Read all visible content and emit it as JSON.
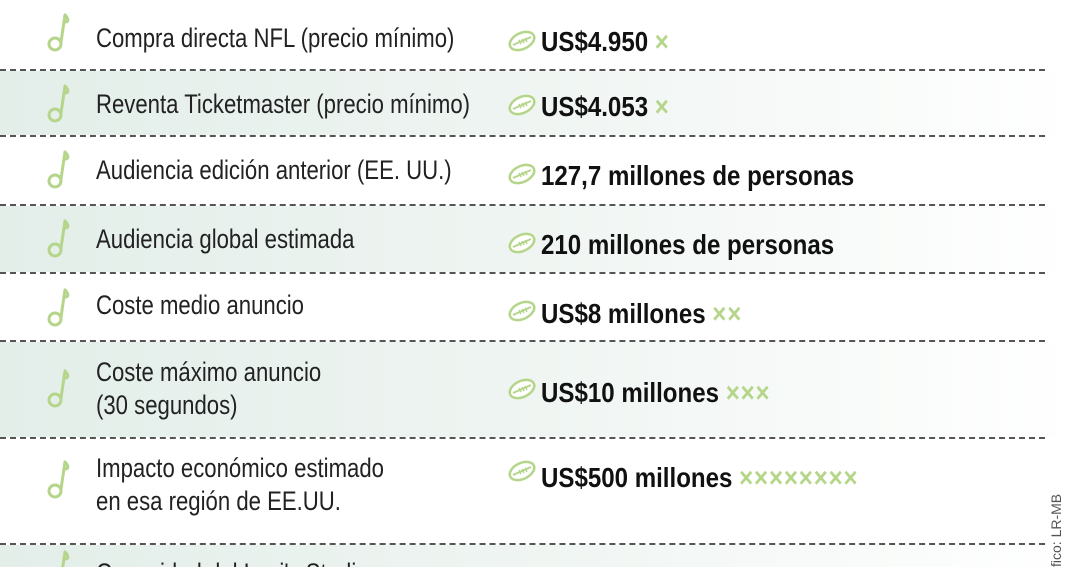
{
  "rows": [
    {
      "label1": "Compra directa NFL (precio mínimo)",
      "label2": "",
      "value": "US$4.950",
      "marks": "×"
    },
    {
      "label1": "Reventa Ticketmaster (precio mínimo)",
      "label2": "",
      "value": "US$4.053",
      "marks": "×"
    },
    {
      "label1": "Audiencia edición anterior (EE. UU.)",
      "label2": "",
      "value": "127,7 millones de personas",
      "marks": ""
    },
    {
      "label1": "Audiencia global estimada",
      "label2": "",
      "value": "210 millones de personas",
      "marks": ""
    },
    {
      "label1": "Coste medio anuncio",
      "label2": "",
      "value": "US$8 millones",
      "marks": "××"
    },
    {
      "label1": "Coste máximo anuncio",
      "label2": "(30 segundos)",
      "value": "US$10 millones",
      "marks": "×××"
    },
    {
      "label1": "Impacto económico estimado",
      "label2": "en esa región de EE.UU.",
      "value": "US$500 millones",
      "marks": "××××××××"
    },
    {
      "label1": "Capacidad del Levi's Stadium",
      "label2": "",
      "value": "",
      "marks": ""
    }
  ],
  "credit": "fico: LR-MB",
  "colors": {
    "accent": "#b5d68a",
    "shade": "#e3eee9",
    "text": "#222222"
  }
}
